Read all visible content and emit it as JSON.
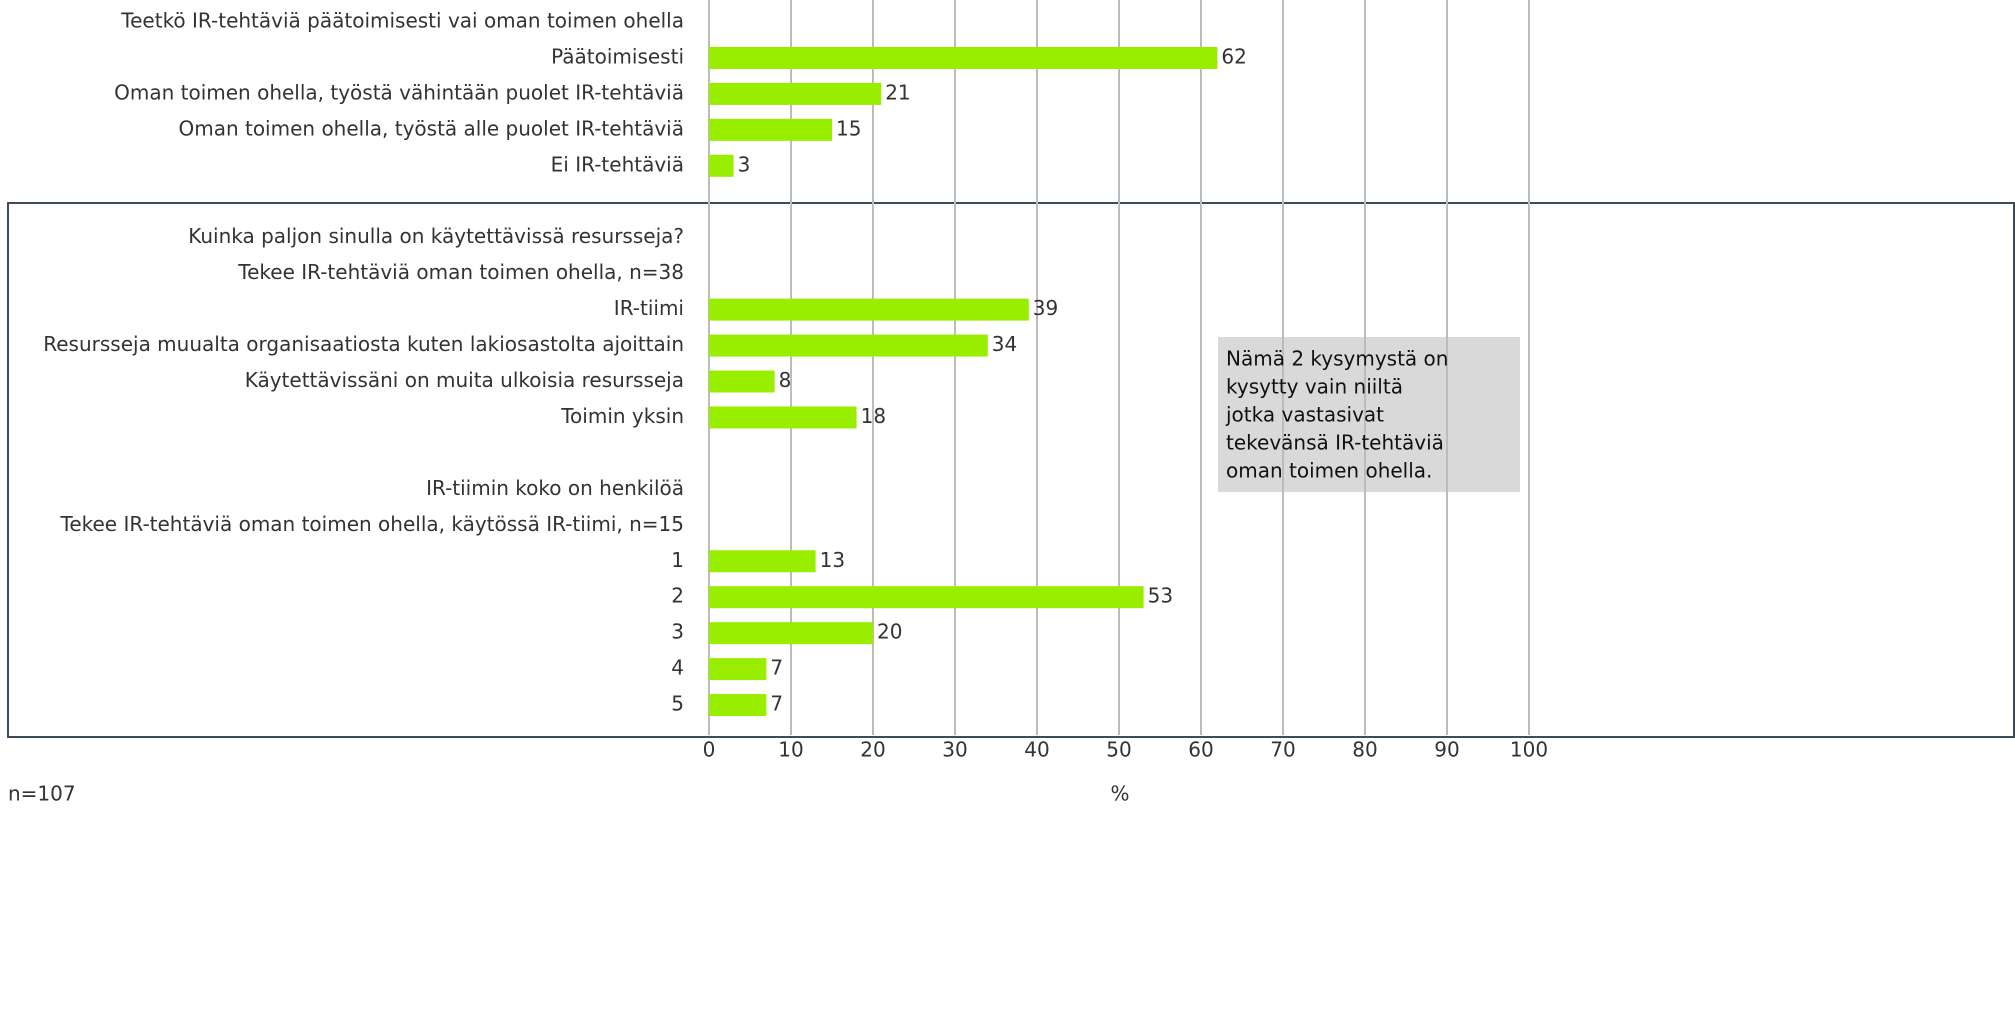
{
  "chart_data": {
    "type": "bar",
    "orientation": "horizontal",
    "categories": [
      "Teetkö IR-tehtäviä päätoimisesti vai oman toimen ohella",
      "Päätoimisesti",
      "Oman toimen ohella, työstä vähintään puolet IR-tehtäviä",
      "Oman toimen ohella, työstä alle puolet IR-tehtäviä",
      "Ei IR-tehtäviä",
      null,
      "Kuinka paljon sinulla on käytettävissä resursseja?",
      "Tekee IR-tehtäviä oman toimen ohella, n=38",
      "IR-tiimi",
      "Resursseja muualta organisaatiosta kuten lakiosastolta ajoittain",
      "Käytettävissäni on muita ulkoisia resursseja",
      "Toimin yksin",
      null,
      "IR-tiimin koko on henkilöä",
      "Tekee IR-tehtäviä oman toimen ohella, käytössä IR-tiimi, n=15",
      "1",
      "2",
      "3",
      "4",
      "5"
    ],
    "values": [
      null,
      62,
      21,
      15,
      3,
      null,
      null,
      null,
      39,
      34,
      8,
      18,
      null,
      null,
      null,
      13,
      53,
      20,
      7,
      7
    ],
    "color": "#99ee00",
    "xlim": [
      0,
      100
    ],
    "xticks": [
      0,
      10,
      20,
      30,
      40,
      50,
      60,
      70,
      80,
      90,
      100
    ],
    "grid": true,
    "x_label": "%",
    "footnote": "n=107",
    "annotation": [
      "Nämä 2 kysymystä on",
      "kysytty vain niiltä",
      "jotka vastasivat",
      "tekevänsä IR-tehtäviä",
      "oman toimen ohella."
    ]
  }
}
